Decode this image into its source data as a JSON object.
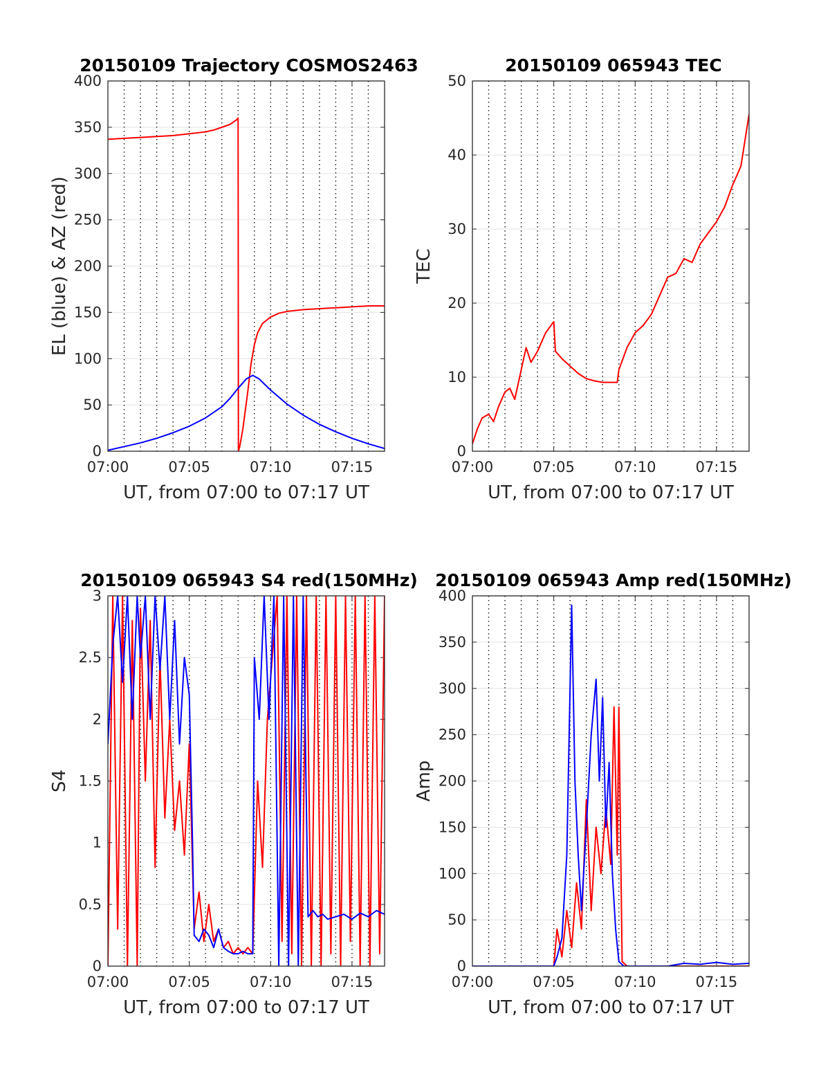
{
  "chart_data": [
    {
      "type": "line",
      "title": "20150109 Trajectory COSMOS2463",
      "xlabel": "UT, from 07:00 to 07:17 UT",
      "ylabel": "EL (blue) & AZ (red)",
      "xlim": [
        0,
        17
      ],
      "ylim": [
        0,
        400
      ],
      "xtick_labels": [
        "07:00",
        "07:05",
        "07:10",
        "07:15"
      ],
      "ytick_labels": [
        "0",
        "50",
        "100",
        "150",
        "200",
        "250",
        "300",
        "350",
        "400"
      ],
      "grid": true,
      "series": [
        {
          "color": "#ff0000",
          "x": [
            0,
            1,
            2,
            3,
            4,
            5,
            6,
            6.5,
            7,
            7.5,
            7.9,
            8.0,
            8.02,
            8.1,
            8.3,
            8.6,
            8.8,
            9.0,
            9.2,
            9.5,
            10.0,
            10.5,
            11,
            12,
            13,
            14,
            15,
            16,
            17
          ],
          "y": [
            337,
            338,
            339,
            340,
            341,
            343,
            345,
            347,
            350,
            353,
            358,
            360,
            0,
            5,
            25,
            65,
            95,
            115,
            128,
            138,
            145,
            149,
            151,
            153,
            154,
            155,
            156,
            157,
            157
          ]
        },
        {
          "color": "#0000ff",
          "x": [
            0,
            1,
            2,
            3,
            4,
            5,
            6,
            7,
            7.5,
            8,
            8.5,
            8.9,
            9.3,
            10,
            11,
            12,
            13,
            14,
            15,
            16,
            17
          ],
          "y": [
            1,
            5,
            9,
            14,
            20,
            27,
            36,
            48,
            57,
            68,
            78,
            82,
            78,
            66,
            51,
            39,
            29,
            21,
            14,
            8,
            3
          ]
        }
      ]
    },
    {
      "type": "line",
      "title": "20150109 065943 TEC",
      "xlabel": "UT, from 07:00 to 07:17 UT",
      "ylabel": "TEC",
      "xlim": [
        0,
        17
      ],
      "ylim": [
        0,
        50
      ],
      "xtick_labels": [
        "07:00",
        "07:05",
        "07:10",
        "07:15"
      ],
      "ytick_labels": [
        "0",
        "10",
        "20",
        "30",
        "40",
        "50"
      ],
      "grid": true,
      "series": [
        {
          "color": "#ff0000",
          "x": [
            0,
            0.3,
            0.6,
            1.0,
            1.3,
            1.6,
            2.0,
            2.3,
            2.6,
            3.0,
            3.3,
            3.6,
            4.0,
            4.5,
            5.0,
            5.1,
            5.5,
            6.0,
            6.5,
            7.0,
            7.5,
            8.0,
            8.5,
            8.9,
            9.0,
            9.5,
            10.0,
            10.5,
            11.0,
            11.5,
            12.0,
            12.5,
            13.0,
            13.5,
            14.0,
            14.5,
            15.0,
            15.5,
            16.0,
            16.5,
            17.0
          ],
          "y": [
            1,
            3,
            4.5,
            5,
            4,
            6,
            8,
            8.5,
            7,
            11,
            14,
            12,
            13.5,
            16,
            17.5,
            13.5,
            12.5,
            11.5,
            10.5,
            9.8,
            9.5,
            9.3,
            9.3,
            9.3,
            11,
            14,
            16,
            17,
            18.5,
            21,
            23.5,
            24,
            26,
            25.5,
            28,
            29.5,
            31,
            33,
            36,
            38.5,
            45.5
          ]
        }
      ]
    },
    {
      "type": "line",
      "title": "20150109 065943 S4 red(150MHz)",
      "xlabel": "UT, from 07:00 to 07:17 UT",
      "ylabel": "S4",
      "xlim": [
        0,
        17
      ],
      "ylim": [
        0,
        3
      ],
      "xtick_labels": [
        "07:00",
        "07:05",
        "07:10",
        "07:15"
      ],
      "ytick_labels": [
        "0",
        "0.5",
        "1",
        "1.5",
        "2",
        "2.5",
        "3"
      ],
      "grid": true,
      "series": [
        {
          "color": "#ff0000",
          "x": [
            0,
            0.3,
            0.6,
            0.9,
            1.2,
            1.5,
            1.8,
            2.0,
            2.3,
            2.6,
            2.9,
            3.2,
            3.5,
            3.8,
            4.1,
            4.4,
            4.7,
            5.0,
            5.3,
            5.6,
            5.9,
            6.2,
            6.5,
            6.8,
            7.1,
            7.4,
            7.7,
            8.0,
            8.3,
            8.6,
            8.9,
            9.2,
            9.5,
            9.8,
            10.1,
            10.4,
            10.7,
            11.0,
            11.3,
            11.6,
            11.9,
            12.2,
            12.5,
            12.8,
            13.1,
            13.4,
            13.7,
            14.0,
            14.3,
            14.6,
            14.9,
            15.2,
            15.5,
            15.8,
            16.1,
            16.4,
            16.7,
            17.0
          ],
          "y": [
            0,
            3,
            0.3,
            3,
            0,
            2.8,
            0,
            2.9,
            1.5,
            2.8,
            0.8,
            2.5,
            1.2,
            2.0,
            1.1,
            1.5,
            0.9,
            1.8,
            0.3,
            0.6,
            0.2,
            0.5,
            0.2,
            0.3,
            0.15,
            0.2,
            0.1,
            0.15,
            0.1,
            0.15,
            0.1,
            1.5,
            0.8,
            2.0,
            2.5,
            3,
            0.2,
            3,
            0.1,
            3,
            0,
            3,
            0,
            3,
            0,
            3,
            0.1,
            3,
            0,
            3,
            0.2,
            3,
            0,
            3,
            0,
            3,
            0.1,
            3
          ]
        },
        {
          "color": "#0000ff",
          "x": [
            0,
            0.3,
            0.6,
            0.9,
            1.2,
            1.5,
            1.8,
            2.0,
            2.3,
            2.6,
            2.9,
            3.2,
            3.5,
            3.8,
            4.1,
            4.4,
            4.7,
            5.0,
            5.2,
            5.3,
            5.6,
            5.9,
            6.2,
            6.5,
            6.8,
            7.1,
            7.4,
            7.7,
            8.0,
            8.3,
            8.6,
            8.9,
            9.0,
            9.3,
            9.6,
            9.9,
            10.2,
            10.5,
            10.8,
            11.1,
            11.4,
            11.7,
            12.0,
            12.3,
            12.6,
            12.9,
            13.2,
            13.5,
            14.0,
            14.5,
            15.0,
            15.5,
            16.0,
            16.5,
            17.0
          ],
          "y": [
            1.8,
            2.6,
            3,
            2.3,
            3,
            2.0,
            3,
            2.5,
            3,
            2.0,
            3,
            2.4,
            3,
            2.0,
            2.8,
            1.8,
            2.5,
            2.2,
            1.0,
            0.25,
            0.2,
            0.3,
            0.25,
            0.15,
            0.3,
            0.15,
            0.12,
            0.1,
            0.1,
            0.12,
            0.1,
            0.1,
            2.5,
            2.0,
            3,
            2.0,
            3,
            0,
            3,
            0,
            3,
            0,
            3,
            0.4,
            0.45,
            0.4,
            0.42,
            0.38,
            0.4,
            0.42,
            0.38,
            0.43,
            0.4,
            0.45,
            0.42
          ]
        }
      ]
    },
    {
      "type": "line",
      "title": "20150109 065943 Amp red(150MHz)",
      "xlabel": "UT, from 07:00 to 07:17 UT",
      "ylabel": "Amp",
      "xlim": [
        0,
        17
      ],
      "ylim": [
        0,
        400
      ],
      "xtick_labels": [
        "07:00",
        "07:05",
        "07:10",
        "07:15"
      ],
      "ytick_labels": [
        "0",
        "50",
        "100",
        "150",
        "200",
        "250",
        "300",
        "350",
        "400"
      ],
      "grid": true,
      "series": [
        {
          "color": "#ff0000",
          "x": [
            0,
            2,
            4,
            5.0,
            5.2,
            5.5,
            5.8,
            6.1,
            6.4,
            6.7,
            7.0,
            7.3,
            7.6,
            7.9,
            8.2,
            8.5,
            8.7,
            8.9,
            9.0,
            9.2,
            9.5,
            10,
            12,
            14,
            17
          ],
          "y": [
            0,
            0,
            0,
            0,
            40,
            10,
            60,
            20,
            90,
            40,
            180,
            60,
            150,
            100,
            170,
            110,
            280,
            120,
            280,
            5,
            0,
            0,
            0,
            0,
            0
          ]
        },
        {
          "color": "#0000ff",
          "x": [
            0,
            2,
            4,
            5.0,
            5.2,
            5.5,
            5.8,
            6.0,
            6.1,
            6.3,
            6.5,
            6.7,
            7.0,
            7.3,
            7.6,
            7.8,
            8.0,
            8.2,
            8.4,
            8.6,
            8.8,
            9.0,
            9.3,
            10,
            12,
            13,
            14,
            15,
            16,
            17
          ],
          "y": [
            0,
            0,
            0,
            0,
            10,
            30,
            120,
            300,
            390,
            200,
            120,
            60,
            150,
            250,
            310,
            200,
            290,
            150,
            220,
            100,
            40,
            5,
            0,
            0,
            0,
            3,
            2,
            4,
            2,
            3
          ]
        }
      ]
    }
  ]
}
